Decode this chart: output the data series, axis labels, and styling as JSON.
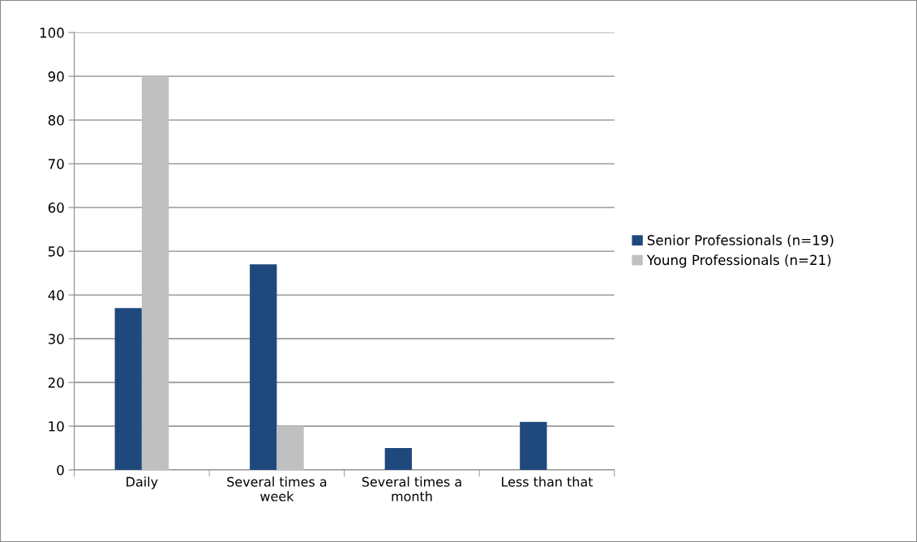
{
  "chart_data": {
    "type": "bar",
    "categories": [
      "Daily",
      "Several times a week",
      "Several times a month",
      "Less than that"
    ],
    "series": [
      {
        "name": "Senior Professionals (n=19)",
        "color": "#1f497d",
        "values": [
          37,
          47,
          5,
          11
        ]
      },
      {
        "name": "Young Professionals (n=21)",
        "color": "#c0c0c0",
        "values": [
          90,
          10,
          0,
          0
        ]
      }
    ],
    "ylim": [
      0,
      100
    ],
    "yticks": [
      0,
      10,
      20,
      30,
      40,
      50,
      60,
      70,
      80,
      90,
      100
    ],
    "grid": "y",
    "legend": "right"
  }
}
